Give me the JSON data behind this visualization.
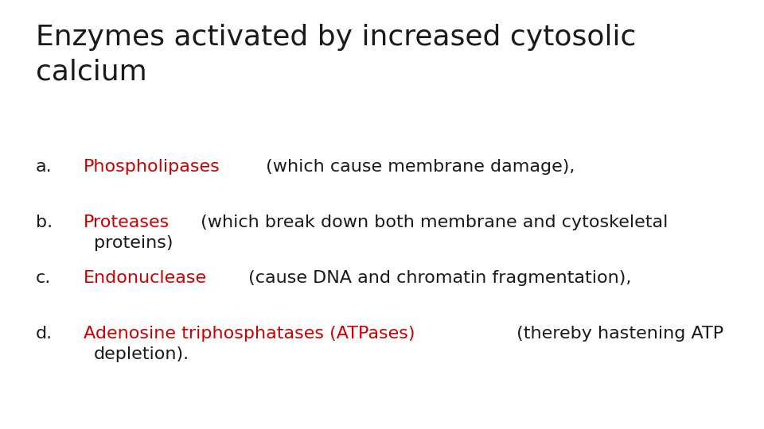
{
  "title_line1": "Enzymes activated by increased cytosolic",
  "title_line2": "calcium",
  "background_color": "#ffffff",
  "title_color": "#1a1a1a",
  "title_fontsize": 26,
  "body_fontsize": 16,
  "red_color": "#cc0000",
  "black_color": "#1a1a1a",
  "items": [
    {
      "label": "a.",
      "parts": [
        {
          "text": "Phospholipases",
          "color": "#cc0000"
        },
        {
          "text": " (which cause membrane damage),",
          "color": "#1a1a1a"
        }
      ],
      "continuation": null
    },
    {
      "label": "b.",
      "parts": [
        {
          "text": "Proteases",
          "color": "#cc0000"
        },
        {
          "text": " (which break down both membrane and cytoskeletal",
          "color": "#1a1a1a"
        }
      ],
      "continuation": "proteins)"
    },
    {
      "label": "c.",
      "parts": [
        {
          "text": "Endonuclease",
          "color": "#cc0000"
        },
        {
          "text": " (cause DNA and chromatin fragmentation),",
          "color": "#1a1a1a"
        }
      ],
      "continuation": null
    },
    {
      "label": "d.",
      "parts": [
        {
          "text": "Adenosine triphosphatases (ATPases)",
          "color": "#cc0000"
        },
        {
          "text": " (thereby hastening ATP",
          "color": "#1a1a1a"
        }
      ],
      "continuation": "depletion)."
    }
  ]
}
